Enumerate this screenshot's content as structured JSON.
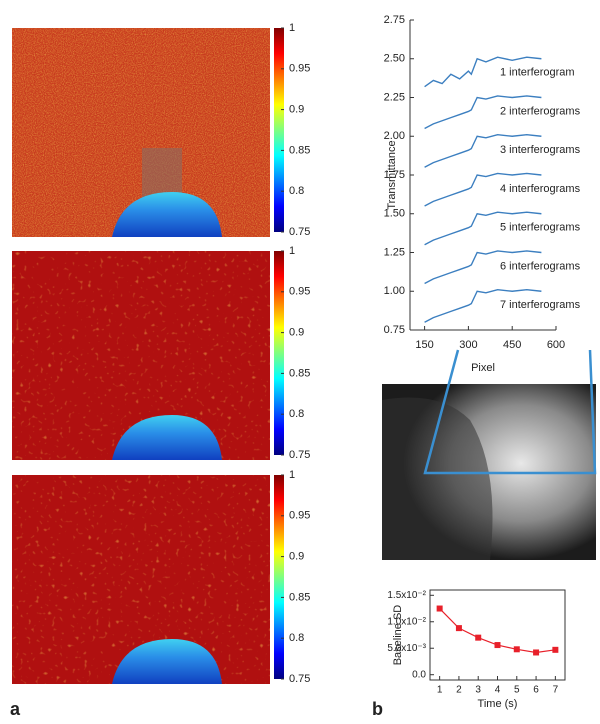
{
  "panel_labels": [
    "a",
    "b"
  ],
  "chart_data": [
    {
      "type": "heatmap",
      "clim": [
        0.75,
        1
      ],
      "cticks": [
        1,
        0.95,
        0.9,
        0.85,
        0.8,
        0.75
      ]
    },
    {
      "type": "heatmap",
      "clim": [
        0.75,
        1
      ],
      "cticks": [
        1,
        0.95,
        0.9,
        0.85,
        0.8,
        0.75
      ]
    },
    {
      "type": "heatmap",
      "clim": [
        0.75,
        1
      ],
      "cticks": [
        1,
        0.95,
        0.9,
        0.85,
        0.8,
        0.75
      ]
    },
    {
      "type": "line",
      "ylabel": "Transmittance",
      "xlabel": "Pixel",
      "x": [
        150,
        180,
        210,
        240,
        270,
        300,
        310,
        330,
        360,
        400,
        450,
        500,
        550
      ],
      "xlim": [
        100,
        600
      ],
      "xticks": [
        150,
        300,
        450,
        600
      ],
      "ylim": [
        0.75,
        2.75
      ],
      "yticks": [
        0.75,
        {
          "value": 1,
          "label": "1.00"
        },
        1.25,
        {
          "value": 1.5,
          "label": "1.50"
        },
        1.75,
        {
          "value": 2,
          "label": "2.00"
        },
        2.25,
        {
          "value": 2.5,
          "label": "2.50"
        },
        2.75
      ],
      "series": [
        {
          "name": "1 interferogram",
          "color": "#3c7fc0",
          "values": [
            2.32,
            2.36,
            2.34,
            2.4,
            2.37,
            2.42,
            2.4,
            2.5,
            2.48,
            2.51,
            2.49,
            2.51,
            2.5
          ]
        },
        {
          "name": "2 interferograms",
          "color": "#3c7fc0",
          "values": [
            2.05,
            2.08,
            2.1,
            2.12,
            2.14,
            2.16,
            2.17,
            2.25,
            2.24,
            2.26,
            2.25,
            2.26,
            2.25
          ]
        },
        {
          "name": "3 interferograms",
          "color": "#3c7fc0",
          "values": [
            1.8,
            1.83,
            1.85,
            1.87,
            1.89,
            1.91,
            1.92,
            2.0,
            1.99,
            2.01,
            2.0,
            2.01,
            2.0
          ]
        },
        {
          "name": "4 interferograms",
          "color": "#3c7fc0",
          "values": [
            1.55,
            1.58,
            1.6,
            1.62,
            1.64,
            1.66,
            1.67,
            1.75,
            1.74,
            1.76,
            1.75,
            1.76,
            1.75
          ]
        },
        {
          "name": "5 interferograms",
          "color": "#3c7fc0",
          "values": [
            1.3,
            1.33,
            1.35,
            1.37,
            1.39,
            1.41,
            1.42,
            1.5,
            1.49,
            1.51,
            1.5,
            1.51,
            1.5
          ]
        },
        {
          "name": "6 interferograms",
          "color": "#3c7fc0",
          "values": [
            1.05,
            1.08,
            1.1,
            1.12,
            1.14,
            1.16,
            1.17,
            1.25,
            1.24,
            1.26,
            1.25,
            1.26,
            1.25
          ]
        },
        {
          "name": "7 interferograms",
          "color": "#3c7fc0",
          "values": [
            0.8,
            0.83,
            0.85,
            0.87,
            0.89,
            0.91,
            0.92,
            1.0,
            0.99,
            1.01,
            1.0,
            1.01,
            1.0
          ]
        }
      ]
    },
    {
      "type": "dotline",
      "ylabel": "Baseline SD",
      "xlabel": "Time (s)",
      "x": [
        1,
        2,
        3,
        4,
        5,
        6,
        7
      ],
      "values": [
        0.0125,
        0.0088,
        0.007,
        0.0056,
        0.0048,
        0.0042,
        0.0047
      ],
      "color": "#e8202a",
      "xlim": [
        0.5,
        7.5
      ],
      "xticks": [
        1,
        2,
        3,
        4,
        5,
        6,
        7
      ],
      "ylim": [
        -0.001,
        0.016
      ],
      "yticks": [
        {
          "value": 0,
          "label": "0.0"
        },
        {
          "value": 0.005,
          "label": "5.0x10⁻³"
        },
        {
          "value": 0.01,
          "label": "1.0x10⁻²"
        },
        {
          "value": 0.015,
          "label": "1.5x10⁻²"
        }
      ]
    }
  ]
}
